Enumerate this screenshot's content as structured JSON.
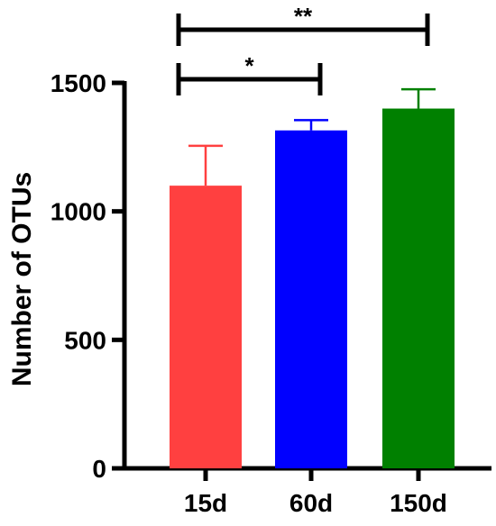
{
  "chart_data": {
    "type": "bar",
    "categories": [
      "15d",
      "60d",
      "150d"
    ],
    "values": [
      1100,
      1315,
      1400
    ],
    "error_upper": [
      1255,
      1355,
      1475
    ],
    "colors": [
      "#FF4040",
      "#0000FF",
      "#008000"
    ],
    "ylabel": "Number of OTUs",
    "xlabel": "",
    "ylim": [
      0,
      1500
    ],
    "yticks": [
      0,
      500,
      1000,
      1500
    ],
    "grid": false,
    "significance": [
      {
        "from": "15d",
        "to": "60d",
        "label": "*"
      },
      {
        "from": "15d",
        "to": "150d",
        "label": "**"
      }
    ]
  }
}
